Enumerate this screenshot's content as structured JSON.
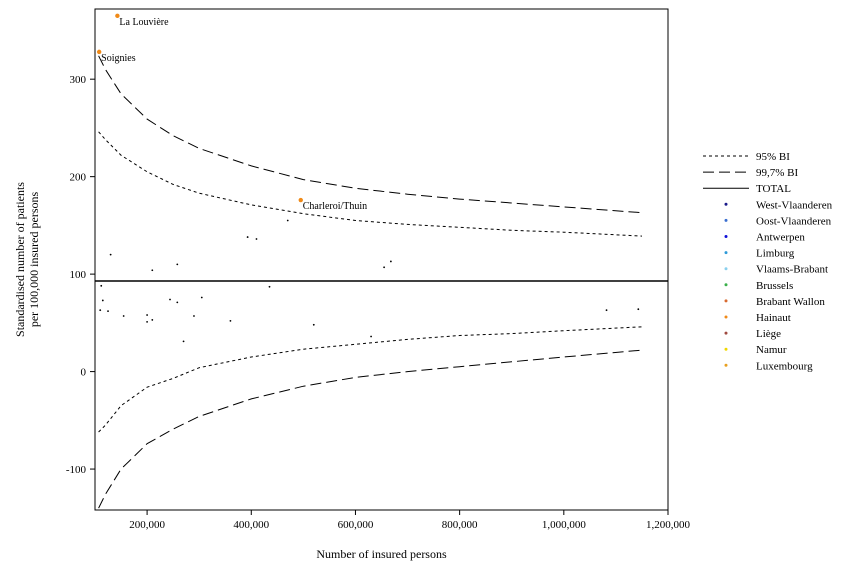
{
  "chart_data": {
    "type": "scatter",
    "title": "",
    "xlabel": "Number of insured persons",
    "ylabel": [
      "Standardised number of patients",
      "per 100,000 insured persons"
    ],
    "xlim": [
      100000,
      1200000
    ],
    "ylim": [
      -142,
      372
    ],
    "x_ticks": [
      200000,
      400000,
      600000,
      800000,
      1000000,
      1200000
    ],
    "x_tick_labels": [
      "200,000",
      "400,000",
      "600,000",
      "800,000",
      "1,000,000",
      "1,200,000"
    ],
    "y_ticks": [
      -100,
      0,
      100,
      200,
      300
    ],
    "y_tick_labels": [
      "-100",
      "0",
      "100",
      "200",
      "300"
    ],
    "grid": false,
    "legend_placement": "right",
    "reference_lines": [
      {
        "name": "95% BI",
        "style": "dotted",
        "x": [
          107000,
          120000,
          150000,
          200000,
          250000,
          300000,
          400000,
          500000,
          600000,
          700000,
          800000,
          900000,
          1000000,
          1150000
        ],
        "upper": [
          246,
          238,
          222,
          205,
          192,
          183,
          171,
          162,
          155,
          151,
          148,
          145,
          143,
          139
        ],
        "lower": [
          -62,
          -55,
          -35,
          -16,
          -7,
          4,
          15,
          23,
          28,
          33,
          37,
          39,
          42,
          46
        ]
      },
      {
        "name": "99,7% BI",
        "style": "dashed",
        "x": [
          107000,
          120000,
          150000,
          200000,
          250000,
          300000,
          400000,
          500000,
          600000,
          700000,
          800000,
          900000,
          1000000,
          1150000
        ],
        "upper": [
          324,
          310,
          285,
          259,
          242,
          229,
          211,
          197,
          188,
          182,
          177,
          173,
          169,
          163
        ],
        "lower": [
          -140,
          -126,
          -100,
          -74,
          -59,
          -46,
          -28,
          -15,
          -6,
          0,
          5,
          10,
          15,
          22
        ]
      },
      {
        "name": "TOTAL",
        "style": "solid",
        "y": 93
      }
    ],
    "legend": [
      {
        "name": "95% BI",
        "kind": "dotted"
      },
      {
        "name": "99,7% BI",
        "kind": "dashed"
      },
      {
        "name": "TOTAL",
        "kind": "solid"
      },
      {
        "name": "West-Vlaanderen",
        "kind": "marker",
        "color": "#1a1a8a"
      },
      {
        "name": "Oost-Vlaanderen",
        "kind": "marker",
        "color": "#3a6fd0"
      },
      {
        "name": "Antwerpen",
        "kind": "marker",
        "color": "#1010d8"
      },
      {
        "name": "Limburg",
        "kind": "marker",
        "color": "#2e9ad8"
      },
      {
        "name": "Vlaams-Brabant",
        "kind": "marker",
        "color": "#8ad0ee"
      },
      {
        "name": "Brussels",
        "kind": "marker",
        "color": "#3ab04a"
      },
      {
        "name": "Brabant Wallon",
        "kind": "marker",
        "color": "#d86a30"
      },
      {
        "name": "Hainaut",
        "kind": "marker",
        "color": "#f08a18"
      },
      {
        "name": "Liège",
        "kind": "marker",
        "color": "#a04a40"
      },
      {
        "name": "Namur",
        "kind": "marker",
        "color": "#f0d800"
      },
      {
        "name": "Luxembourg",
        "kind": "marker",
        "color": "#e8a020"
      }
    ],
    "points": [
      {
        "x": 143000,
        "y": 365,
        "label": "La Louvière",
        "color": "#f08a18",
        "highlight": true
      },
      {
        "x": 108000,
        "y": 328,
        "label": "Soignies",
        "color": "#f08a18",
        "highlight": true
      },
      {
        "x": 495000,
        "y": 176,
        "label": "Charleroi/Thuin",
        "color": "#f08a18",
        "highlight": true
      },
      {
        "x": 470000,
        "y": 155,
        "color": "#000000"
      },
      {
        "x": 130000,
        "y": 120,
        "color": "#000000"
      },
      {
        "x": 393000,
        "y": 138,
        "color": "#000000"
      },
      {
        "x": 410000,
        "y": 136,
        "color": "#000000"
      },
      {
        "x": 210000,
        "y": 104,
        "color": "#000000"
      },
      {
        "x": 258000,
        "y": 110,
        "color": "#000000"
      },
      {
        "x": 668000,
        "y": 113,
        "color": "#000000"
      },
      {
        "x": 655000,
        "y": 107,
        "color": "#000000"
      },
      {
        "x": 112000,
        "y": 88,
        "color": "#000000"
      },
      {
        "x": 435000,
        "y": 87,
        "color": "#000000"
      },
      {
        "x": 115000,
        "y": 73,
        "color": "#000000"
      },
      {
        "x": 244000,
        "y": 74,
        "color": "#000000"
      },
      {
        "x": 258000,
        "y": 71,
        "color": "#000000"
      },
      {
        "x": 305000,
        "y": 76,
        "color": "#000000"
      },
      {
        "x": 110000,
        "y": 63,
        "color": "#000000"
      },
      {
        "x": 125000,
        "y": 62,
        "color": "#000000"
      },
      {
        "x": 155000,
        "y": 57,
        "color": "#000000"
      },
      {
        "x": 200000,
        "y": 58,
        "color": "#000000"
      },
      {
        "x": 290000,
        "y": 57,
        "color": "#000000"
      },
      {
        "x": 200000,
        "y": 51,
        "color": "#000000"
      },
      {
        "x": 210000,
        "y": 53,
        "color": "#000000"
      },
      {
        "x": 360000,
        "y": 52,
        "color": "#000000"
      },
      {
        "x": 520000,
        "y": 48,
        "color": "#000000"
      },
      {
        "x": 270000,
        "y": 31,
        "color": "#000000"
      },
      {
        "x": 630000,
        "y": 36,
        "color": "#000000"
      },
      {
        "x": 1082000,
        "y": 63,
        "color": "#000000"
      },
      {
        "x": 1143000,
        "y": 64,
        "color": "#000000"
      }
    ]
  }
}
